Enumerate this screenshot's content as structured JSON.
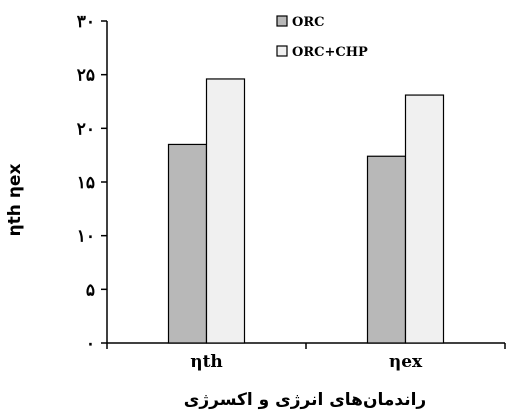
{
  "chart_data": {
    "type": "bar",
    "categories": [
      "ηth",
      "ηex"
    ],
    "series": [
      {
        "name": "ORC",
        "values": [
          18.5,
          17.4
        ],
        "color": "#b8b8b8"
      },
      {
        "name": "ORC+CHP",
        "values": [
          24.6,
          23.1
        ],
        "color": "#f0f0f0"
      }
    ],
    "y_ticks": [
      {
        "value": 0,
        "label": "٠"
      },
      {
        "value": 5,
        "label": "۵"
      },
      {
        "value": 10,
        "label": "١٠"
      },
      {
        "value": 15,
        "label": "١۵"
      },
      {
        "value": 20,
        "label": "٢٠"
      },
      {
        "value": 25,
        "label": "٢۵"
      },
      {
        "value": 30,
        "label": "٣٠"
      }
    ],
    "ylim": [
      0,
      30
    ],
    "xlabel": "راندمان‌های انرژی و اکسرژی",
    "ylabel": "ηth ηex",
    "legend_position": "top-right",
    "grid": false
  }
}
